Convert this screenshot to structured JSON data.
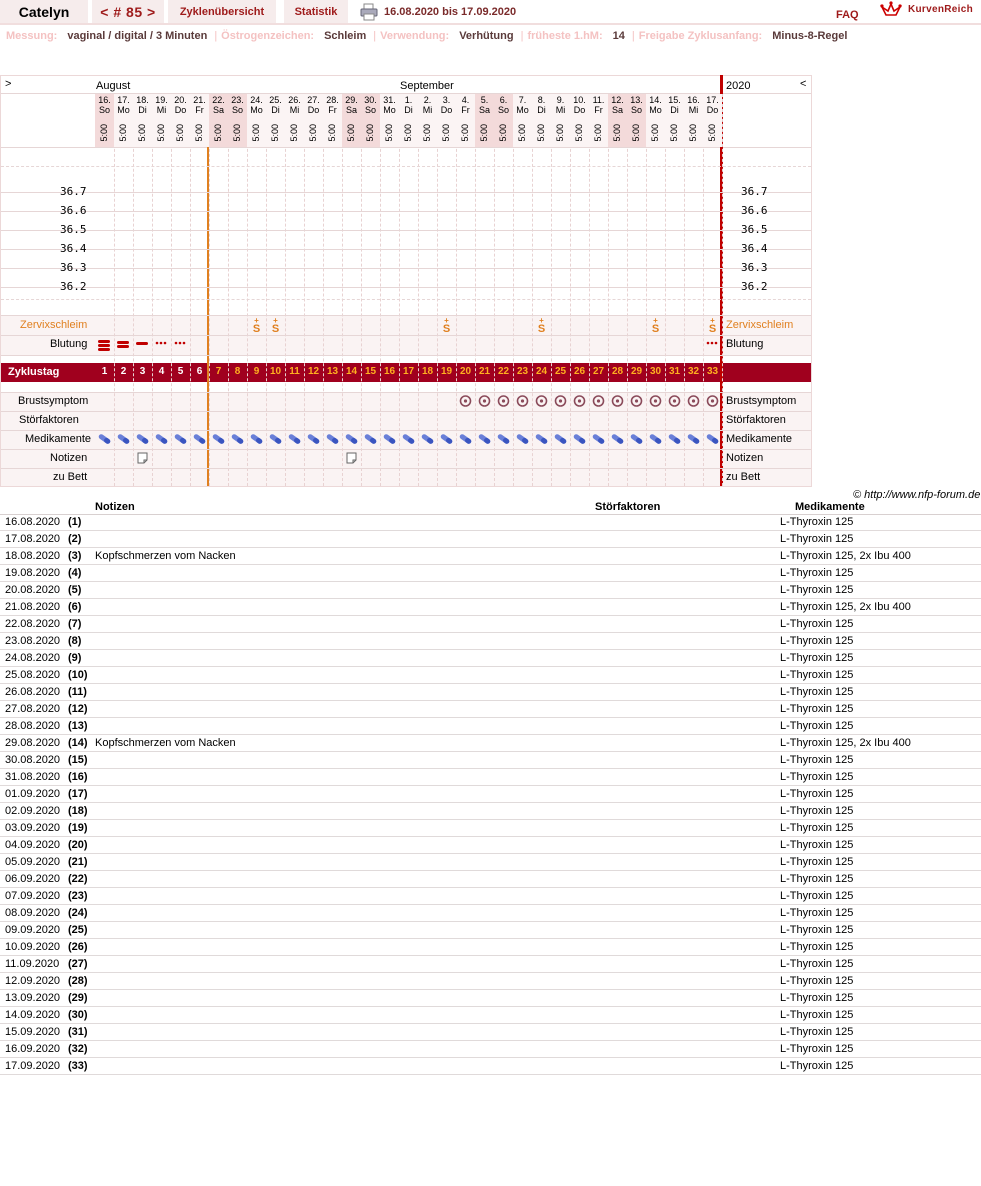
{
  "topbar": {
    "user": "Catelyn",
    "cycle": "< # 85 >",
    "tab_overview": "Zyklenübersicht",
    "tab_stats": "Statistik",
    "date_range": "16.08.2020 bis 17.09.2020",
    "faq": "FAQ",
    "logo": "KurvenReich",
    "print_icon": "printer-icon"
  },
  "settings": [
    {
      "label": "Messung:",
      "value": "vaginal / digital / 3 Minuten"
    },
    {
      "label": "Östrogenzeichen:",
      "value": "Schleim"
    },
    {
      "label": "Verwendung:",
      "value": "Verhütung"
    },
    {
      "label": "früheste 1.hM:",
      "value": "14"
    },
    {
      "label": "Freigabe Zyklusanfang:",
      "value": "Minus-8-Regel"
    }
  ],
  "chart": {
    "nav_left": ">",
    "nav_right": "<",
    "month1": "August",
    "month2": "September",
    "year": "2020",
    "time": "5:00",
    "accent_orange": "#e08020",
    "accent_red": "#c00000",
    "cycle_bar_color": "#a0001e",
    "days": [
      {
        "d": "16.",
        "w": "So"
      },
      {
        "d": "17.",
        "w": "Mo"
      },
      {
        "d": "18.",
        "w": "Di"
      },
      {
        "d": "19.",
        "w": "Mi"
      },
      {
        "d": "20.",
        "w": "Do"
      },
      {
        "d": "21.",
        "w": "Fr"
      },
      {
        "d": "22.",
        "w": "Sa"
      },
      {
        "d": "23.",
        "w": "So"
      },
      {
        "d": "24.",
        "w": "Mo"
      },
      {
        "d": "25.",
        "w": "Di"
      },
      {
        "d": "26.",
        "w": "Mi"
      },
      {
        "d": "27.",
        "w": "Do"
      },
      {
        "d": "28.",
        "w": "Fr"
      },
      {
        "d": "29.",
        "w": "Sa"
      },
      {
        "d": "30.",
        "w": "So"
      },
      {
        "d": "31.",
        "w": "Mo"
      },
      {
        "d": "1.",
        "w": "Di"
      },
      {
        "d": "2.",
        "w": "Mi"
      },
      {
        "d": "3.",
        "w": "Do"
      },
      {
        "d": "4.",
        "w": "Fr"
      },
      {
        "d": "5.",
        "w": "Sa"
      },
      {
        "d": "6.",
        "w": "So"
      },
      {
        "d": "7.",
        "w": "Mo"
      },
      {
        "d": "8.",
        "w": "Di"
      },
      {
        "d": "9.",
        "w": "Mi"
      },
      {
        "d": "10.",
        "w": "Do"
      },
      {
        "d": "11.",
        "w": "Fr"
      },
      {
        "d": "12.",
        "w": "Sa"
      },
      {
        "d": "13.",
        "w": "So"
      },
      {
        "d": "14.",
        "w": "Mo"
      },
      {
        "d": "15.",
        "w": "Di"
      },
      {
        "d": "16.",
        "w": "Mi"
      },
      {
        "d": "17.",
        "w": "Do"
      }
    ],
    "temps": [
      "36.7",
      "36.6",
      "36.5",
      "36.4",
      "36.3",
      "36.2"
    ],
    "rows": {
      "cervix": "Zervixschleim",
      "bleeding": "Blutung",
      "cycleday": "Zyklustag",
      "breast": "Brustsymptom",
      "disturb": "Störfaktoren",
      "meds": "Medikamente",
      "notes": "Notizen",
      "bed": "zu Bett"
    },
    "cervix_symbol": "S",
    "cervix_days": [
      9,
      10,
      19,
      24,
      30,
      33
    ],
    "bleeding": [
      {
        "day": 1,
        "level": "heavy"
      },
      {
        "day": 2,
        "level": "medium"
      },
      {
        "day": 3,
        "level": "light"
      },
      {
        "day": 4,
        "level": "spotting"
      },
      {
        "day": 5,
        "level": "spotting"
      },
      {
        "day": 33,
        "level": "spotting"
      }
    ],
    "breast_days": [
      20,
      21,
      22,
      23,
      24,
      25,
      26,
      27,
      28,
      29,
      30,
      31,
      32,
      33
    ],
    "note_days": [
      3,
      14
    ],
    "copyright": "© http://www.nfp-forum.de"
  },
  "table": {
    "headers": {
      "notes": "Notizen",
      "disturb": "Störfaktoren",
      "meds": "Medikamente"
    },
    "rows": [
      {
        "date": "16.08.2020",
        "n": "(1)",
        "note": "",
        "med": "L-Thyroxin 125"
      },
      {
        "date": "17.08.2020",
        "n": "(2)",
        "note": "",
        "med": "L-Thyroxin 125"
      },
      {
        "date": "18.08.2020",
        "n": "(3)",
        "note": "Kopfschmerzen vom Nacken",
        "med": "L-Thyroxin 125, 2x Ibu 400"
      },
      {
        "date": "19.08.2020",
        "n": "(4)",
        "note": "",
        "med": "L-Thyroxin 125"
      },
      {
        "date": "20.08.2020",
        "n": "(5)",
        "note": "",
        "med": "L-Thyroxin 125"
      },
      {
        "date": "21.08.2020",
        "n": "(6)",
        "note": "",
        "med": "L-Thyroxin 125, 2x Ibu 400"
      },
      {
        "date": "22.08.2020",
        "n": "(7)",
        "note": "",
        "med": "L-Thyroxin 125"
      },
      {
        "date": "23.08.2020",
        "n": "(8)",
        "note": "",
        "med": "L-Thyroxin 125"
      },
      {
        "date": "24.08.2020",
        "n": "(9)",
        "note": "",
        "med": "L-Thyroxin 125"
      },
      {
        "date": "25.08.2020",
        "n": "(10)",
        "note": "",
        "med": "L-Thyroxin 125"
      },
      {
        "date": "26.08.2020",
        "n": "(11)",
        "note": "",
        "med": "L-Thyroxin 125"
      },
      {
        "date": "27.08.2020",
        "n": "(12)",
        "note": "",
        "med": "L-Thyroxin 125"
      },
      {
        "date": "28.08.2020",
        "n": "(13)",
        "note": "",
        "med": "L-Thyroxin 125"
      },
      {
        "date": "29.08.2020",
        "n": "(14)",
        "note": "Kopfschmerzen vom Nacken",
        "med": "L-Thyroxin 125, 2x Ibu 400"
      },
      {
        "date": "30.08.2020",
        "n": "(15)",
        "note": "",
        "med": "L-Thyroxin 125"
      },
      {
        "date": "31.08.2020",
        "n": "(16)",
        "note": "",
        "med": "L-Thyroxin 125"
      },
      {
        "date": "01.09.2020",
        "n": "(17)",
        "note": "",
        "med": "L-Thyroxin 125"
      },
      {
        "date": "02.09.2020",
        "n": "(18)",
        "note": "",
        "med": "L-Thyroxin 125"
      },
      {
        "date": "03.09.2020",
        "n": "(19)",
        "note": "",
        "med": "L-Thyroxin 125"
      },
      {
        "date": "04.09.2020",
        "n": "(20)",
        "note": "",
        "med": "L-Thyroxin 125"
      },
      {
        "date": "05.09.2020",
        "n": "(21)",
        "note": "",
        "med": "L-Thyroxin 125"
      },
      {
        "date": "06.09.2020",
        "n": "(22)",
        "note": "",
        "med": "L-Thyroxin 125"
      },
      {
        "date": "07.09.2020",
        "n": "(23)",
        "note": "",
        "med": "L-Thyroxin 125"
      },
      {
        "date": "08.09.2020",
        "n": "(24)",
        "note": "",
        "med": "L-Thyroxin 125"
      },
      {
        "date": "09.09.2020",
        "n": "(25)",
        "note": "",
        "med": "L-Thyroxin 125"
      },
      {
        "date": "10.09.2020",
        "n": "(26)",
        "note": "",
        "med": "L-Thyroxin 125"
      },
      {
        "date": "11.09.2020",
        "n": "(27)",
        "note": "",
        "med": "L-Thyroxin 125"
      },
      {
        "date": "12.09.2020",
        "n": "(28)",
        "note": "",
        "med": "L-Thyroxin 125"
      },
      {
        "date": "13.09.2020",
        "n": "(29)",
        "note": "",
        "med": "L-Thyroxin 125"
      },
      {
        "date": "14.09.2020",
        "n": "(30)",
        "note": "",
        "med": "L-Thyroxin 125"
      },
      {
        "date": "15.09.2020",
        "n": "(31)",
        "note": "",
        "med": "L-Thyroxin 125"
      },
      {
        "date": "16.09.2020",
        "n": "(32)",
        "note": "",
        "med": "L-Thyroxin 125"
      },
      {
        "date": "17.09.2020",
        "n": "(33)",
        "note": "",
        "med": "L-Thyroxin 125"
      }
    ]
  }
}
